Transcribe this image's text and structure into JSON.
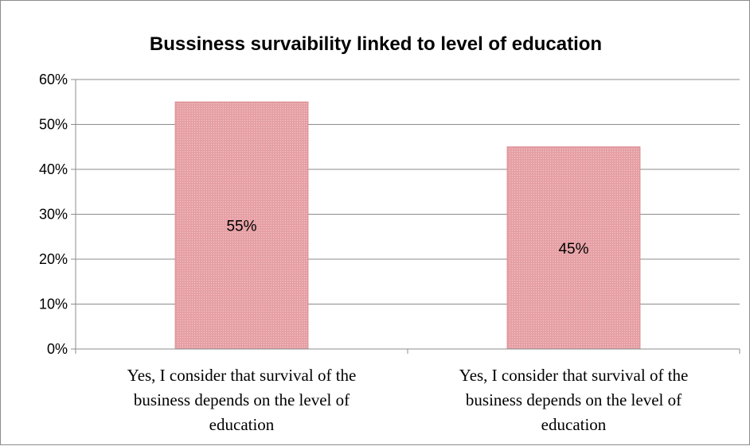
{
  "chart_data": {
    "type": "bar",
    "title": "Bussiness survaibility linked to level of education",
    "categories": [
      "Yes, I consider that survival of the business depends on the level of education",
      "Yes, I consider that survival of the business depends on the level of education"
    ],
    "category_lines": [
      [
        "Yes, I consider that survival of the",
        "business depends on the level of",
        "education"
      ],
      [
        "Yes, I consider that survival of the",
        "business depends on the level of",
        "education"
      ]
    ],
    "values": [
      55,
      45
    ],
    "data_labels": [
      "55%",
      "45%"
    ],
    "yticks": [
      "0%",
      "10%",
      "20%",
      "30%",
      "40%",
      "50%",
      "60%"
    ],
    "ylim": [
      0,
      60
    ],
    "xlabel": "",
    "ylabel": "",
    "grid": true,
    "legend": "none",
    "colors": {
      "bar_fill": "#e8a3a7",
      "bar_stroke": "#d88a8f",
      "grid": "#8c8c8c",
      "axis": "#8c8c8c"
    }
  }
}
